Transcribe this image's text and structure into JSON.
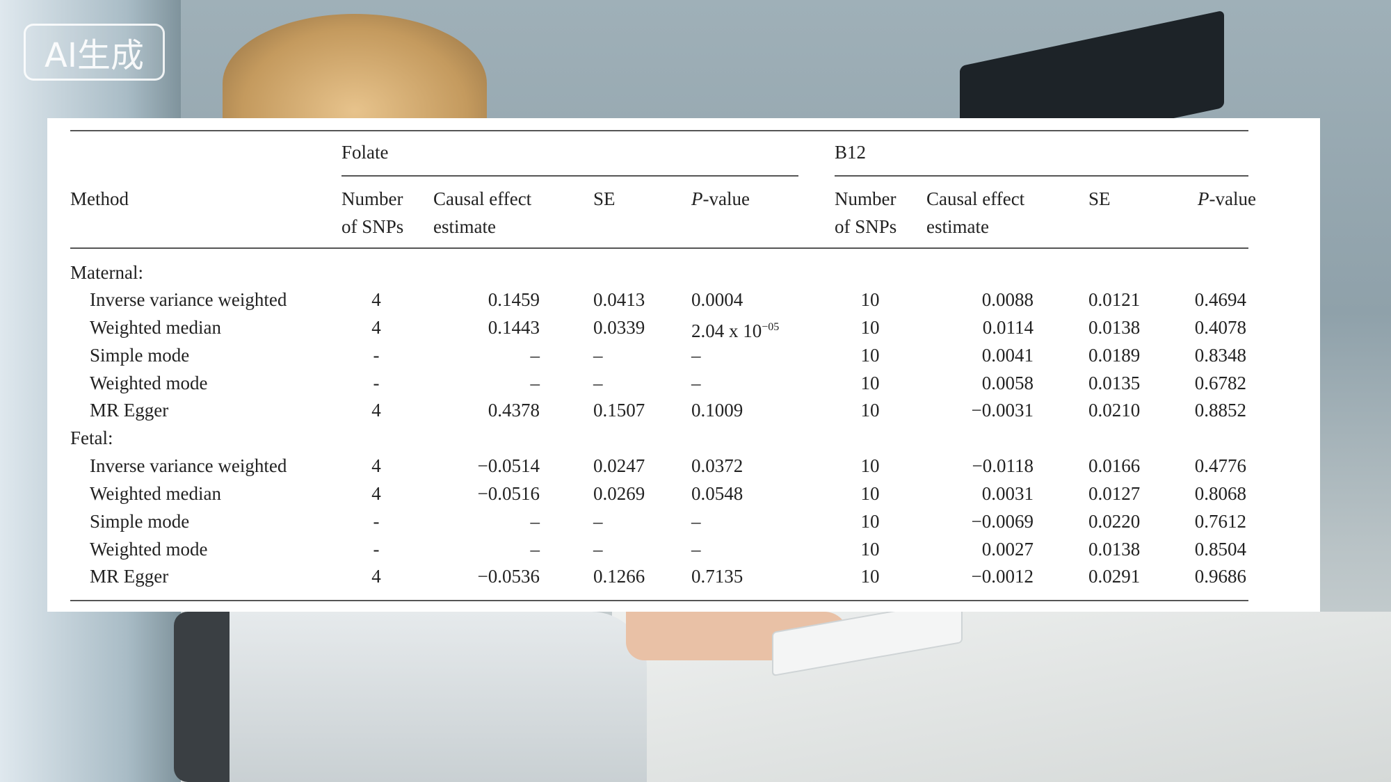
{
  "badge": "AI生成",
  "table": {
    "method_header": "Method",
    "groups": [
      "Folate",
      "B12"
    ],
    "col_headers": {
      "n_line1": "Number",
      "n_line2": "of SNPs",
      "est_line1": "Causal effect",
      "est_line2": "estimate",
      "se": "SE",
      "p_italic": "P",
      "p_rest": "-value"
    },
    "sections": [
      {
        "label": "Maternal:",
        "rows": [
          {
            "method": "Inverse variance weighted",
            "f": [
              "4",
              "0.1459",
              "0.0413",
              "0.0004"
            ],
            "b": [
              "10",
              "0.0088",
              "0.0121",
              "0.4694"
            ]
          },
          {
            "method": "Weighted median",
            "f": [
              "4",
              "0.1443",
              "0.0339",
              "2.04 x 10"
            ],
            "f_p_exp": "−05",
            "b": [
              "10",
              "0.0114",
              "0.0138",
              "0.4078"
            ]
          },
          {
            "method": "Simple mode",
            "f": [
              "-",
              "–",
              "–",
              "–"
            ],
            "b": [
              "10",
              "0.0041",
              "0.0189",
              "0.8348"
            ]
          },
          {
            "method": "Weighted mode",
            "f": [
              "-",
              "–",
              "–",
              "–"
            ],
            "b": [
              "10",
              "0.0058",
              "0.0135",
              "0.6782"
            ]
          },
          {
            "method": "MR Egger",
            "f": [
              "4",
              "0.4378",
              "0.1507",
              "0.1009"
            ],
            "b": [
              "10",
              "−0.0031",
              "0.0210",
              "0.8852"
            ]
          }
        ]
      },
      {
        "label": "Fetal:",
        "rows": [
          {
            "method": "Inverse variance weighted",
            "f": [
              "4",
              "−0.0514",
              "0.0247",
              "0.0372"
            ],
            "b": [
              "10",
              "−0.0118",
              "0.0166",
              "0.4776"
            ]
          },
          {
            "method": "Weighted median",
            "f": [
              "4",
              "−0.0516",
              "0.0269",
              "0.0548"
            ],
            "b": [
              "10",
              "0.0031",
              "0.0127",
              "0.8068"
            ]
          },
          {
            "method": "Simple mode",
            "f": [
              "-",
              "–",
              "–",
              "–"
            ],
            "b": [
              "10",
              "−0.0069",
              "0.0220",
              "0.7612"
            ]
          },
          {
            "method": "Weighted mode",
            "f": [
              "-",
              "–",
              "–",
              "–"
            ],
            "b": [
              "10",
              "0.0027",
              "0.0138",
              "0.8504"
            ]
          },
          {
            "method": "MR Egger",
            "f": [
              "4",
              "−0.0536",
              "0.1266",
              "0.7135"
            ],
            "b": [
              "10",
              "−0.0012",
              "0.0291",
              "0.9686"
            ]
          }
        ]
      }
    ]
  }
}
